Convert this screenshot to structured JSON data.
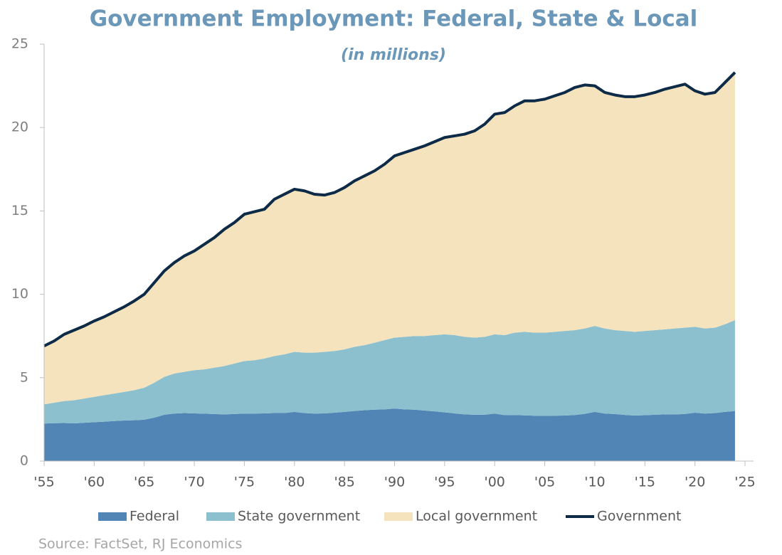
{
  "chart_data": {
    "type": "stacked_area_line",
    "title": "Government Employment: Federal, State & Local",
    "subtitle": "(in millions)",
    "source": "Source: FactSet, RJ Economics",
    "x": [
      1955,
      1956,
      1957,
      1958,
      1959,
      1960,
      1961,
      1962,
      1963,
      1964,
      1965,
      1966,
      1967,
      1968,
      1969,
      1970,
      1971,
      1972,
      1973,
      1974,
      1975,
      1976,
      1977,
      1978,
      1979,
      1980,
      1981,
      1982,
      1983,
      1984,
      1985,
      1986,
      1987,
      1988,
      1989,
      1990,
      1991,
      1992,
      1993,
      1994,
      1995,
      1996,
      1997,
      1998,
      1999,
      2000,
      2001,
      2002,
      2003,
      2004,
      2005,
      2006,
      2007,
      2008,
      2009,
      2010,
      2011,
      2012,
      2013,
      2014,
      2015,
      2016,
      2017,
      2018,
      2019,
      2020,
      2021,
      2022,
      2023,
      2024
    ],
    "series": [
      {
        "name": "Federal",
        "color": "#5185b5",
        "stack": true,
        "values": [
          2.25,
          2.27,
          2.28,
          2.26,
          2.3,
          2.33,
          2.36,
          2.4,
          2.43,
          2.45,
          2.48,
          2.6,
          2.78,
          2.85,
          2.88,
          2.86,
          2.84,
          2.82,
          2.8,
          2.82,
          2.85,
          2.85,
          2.86,
          2.88,
          2.88,
          2.95,
          2.88,
          2.85,
          2.86,
          2.9,
          2.95,
          3.0,
          3.05,
          3.08,
          3.1,
          3.15,
          3.1,
          3.08,
          3.03,
          2.98,
          2.92,
          2.86,
          2.8,
          2.78,
          2.78,
          2.85,
          2.75,
          2.76,
          2.74,
          2.72,
          2.72,
          2.72,
          2.73,
          2.76,
          2.83,
          2.95,
          2.85,
          2.82,
          2.77,
          2.73,
          2.75,
          2.78,
          2.8,
          2.8,
          2.82,
          2.9,
          2.85,
          2.88,
          2.95,
          3.0
        ]
      },
      {
        "name": "State government",
        "color": "#8dc0ce",
        "stack": true,
        "values": [
          1.15,
          1.23,
          1.32,
          1.39,
          1.45,
          1.52,
          1.59,
          1.65,
          1.72,
          1.8,
          1.92,
          2.1,
          2.27,
          2.4,
          2.47,
          2.59,
          2.66,
          2.78,
          2.9,
          3.03,
          3.15,
          3.2,
          3.29,
          3.42,
          3.52,
          3.6,
          3.62,
          3.65,
          3.69,
          3.7,
          3.75,
          3.85,
          3.9,
          4.02,
          4.15,
          4.25,
          4.35,
          4.42,
          4.47,
          4.57,
          4.68,
          4.69,
          4.65,
          4.62,
          4.67,
          4.75,
          4.8,
          4.94,
          5.01,
          4.98,
          4.98,
          5.03,
          5.07,
          5.09,
          5.12,
          5.15,
          5.1,
          5.03,
          5.03,
          5.02,
          5.05,
          5.07,
          5.1,
          5.15,
          5.18,
          5.15,
          5.1,
          5.12,
          5.25,
          5.45
        ]
      },
      {
        "name": "Local government",
        "color": "#f4e3bc",
        "stack": true,
        "values": [
          3.5,
          3.7,
          4.0,
          4.2,
          4.35,
          4.55,
          4.7,
          4.9,
          5.1,
          5.35,
          5.6,
          6.0,
          6.35,
          6.65,
          6.95,
          7.15,
          7.5,
          7.8,
          8.2,
          8.45,
          8.8,
          8.9,
          8.95,
          9.4,
          9.6,
          9.75,
          9.7,
          9.5,
          9.4,
          9.5,
          9.7,
          9.95,
          10.15,
          10.3,
          10.55,
          10.9,
          11.05,
          11.2,
          11.4,
          11.6,
          11.8,
          11.95,
          12.15,
          12.4,
          12.75,
          13.2,
          13.35,
          13.6,
          13.85,
          13.9,
          14.0,
          14.15,
          14.3,
          14.55,
          14.6,
          14.4,
          14.15,
          14.1,
          14.05,
          14.1,
          14.15,
          14.25,
          14.4,
          14.5,
          14.6,
          14.15,
          14.05,
          14.1,
          14.5,
          14.85
        ]
      },
      {
        "name": "Government",
        "color": "#0d2a47",
        "stack": false,
        "values": [
          6.9,
          7.2,
          7.6,
          7.85,
          8.1,
          8.4,
          8.65,
          8.95,
          9.25,
          9.6,
          10.0,
          10.7,
          11.4,
          11.9,
          12.3,
          12.6,
          13.0,
          13.4,
          13.9,
          14.3,
          14.8,
          14.95,
          15.1,
          15.7,
          16.0,
          16.3,
          16.2,
          16.0,
          15.95,
          16.1,
          16.4,
          16.8,
          17.1,
          17.4,
          17.8,
          18.3,
          18.5,
          18.7,
          18.9,
          19.15,
          19.4,
          19.5,
          19.6,
          19.8,
          20.2,
          20.8,
          20.9,
          21.3,
          21.6,
          21.6,
          21.7,
          21.9,
          22.1,
          22.4,
          22.55,
          22.5,
          22.1,
          21.95,
          21.85,
          21.85,
          21.95,
          22.1,
          22.3,
          22.45,
          22.6,
          22.2,
          22.0,
          22.1,
          22.7,
          23.3
        ]
      }
    ],
    "xlim": [
      1955,
      2025
    ],
    "ylim": [
      0,
      25
    ],
    "yticks": [
      0,
      5,
      10,
      15,
      20,
      25
    ],
    "xticks": [
      {
        "value": 1955,
        "label": "'55"
      },
      {
        "value": 1960,
        "label": "'60"
      },
      {
        "value": 1965,
        "label": "'65"
      },
      {
        "value": 1970,
        "label": "'70"
      },
      {
        "value": 1975,
        "label": "'75"
      },
      {
        "value": 1980,
        "label": "'80"
      },
      {
        "value": 1985,
        "label": "'85"
      },
      {
        "value": 1990,
        "label": "'90"
      },
      {
        "value": 1995,
        "label": "'95"
      },
      {
        "value": 2000,
        "label": "'00"
      },
      {
        "value": 2005,
        "label": "'05"
      },
      {
        "value": 2010,
        "label": "'10"
      },
      {
        "value": 2015,
        "label": "'15"
      },
      {
        "value": 2020,
        "label": "'20"
      },
      {
        "value": 2025,
        "label": "'25"
      }
    ],
    "legend": "bottom"
  }
}
